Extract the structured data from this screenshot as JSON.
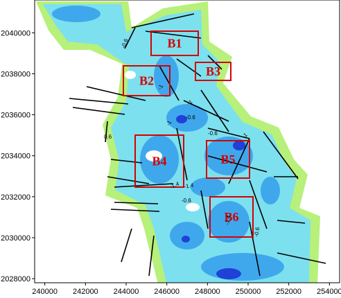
{
  "axes": {
    "xlim": [
      239500,
      254500
    ],
    "ylim": [
      2027800,
      2041600
    ],
    "xticks": [
      240000,
      242000,
      244000,
      246000,
      248000,
      250000,
      252000,
      254000
    ],
    "yticks": [
      2028000,
      2030000,
      2032000,
      2034000,
      2036000,
      2038000,
      2040000
    ]
  },
  "boxes": [
    {
      "label": "B1"
    },
    {
      "label": "B2"
    },
    {
      "label": "B3"
    },
    {
      "label": "B4"
    },
    {
      "label": "B5"
    },
    {
      "label": "B6"
    }
  ],
  "contour_labels": [
    "-0.6",
    "-1",
    "-1.4",
    "-1",
    "-0.6",
    "-1",
    "-0.6",
    "0.6",
    "-1",
    "-1.4",
    "-0.6",
    "-1.4",
    "-0.6"
  ]
}
